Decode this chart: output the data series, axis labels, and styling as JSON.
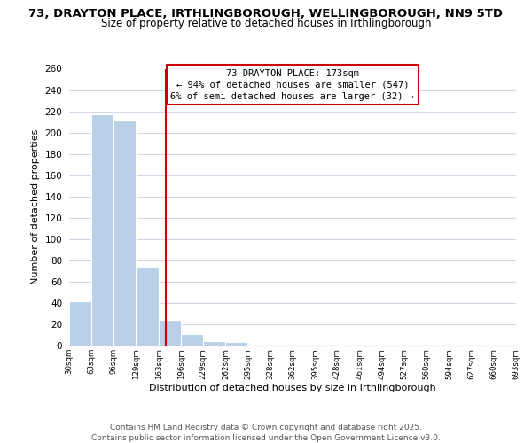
{
  "title_line1": "73, DRAYTON PLACE, IRTHLINGBOROUGH, WELLINGBOROUGH, NN9 5TD",
  "title_line2": "Size of property relative to detached houses in Irthlingborough",
  "xlabel": "Distribution of detached houses by size in Irthlingborough",
  "ylabel": "Number of detached properties",
  "bin_edges": [
    30,
    63,
    96,
    129,
    163,
    196,
    229,
    262,
    295,
    328,
    362,
    395,
    428,
    461,
    494,
    527,
    560,
    594,
    627,
    660,
    693
  ],
  "bin_labels": [
    "30sqm",
    "63sqm",
    "96sqm",
    "129sqm",
    "163sqm",
    "196sqm",
    "229sqm",
    "262sqm",
    "295sqm",
    "328sqm",
    "362sqm",
    "395sqm",
    "428sqm",
    "461sqm",
    "494sqm",
    "527sqm",
    "560sqm",
    "594sqm",
    "627sqm",
    "660sqm",
    "693sqm"
  ],
  "counts": [
    42,
    217,
    211,
    74,
    24,
    11,
    4,
    3,
    0,
    0,
    0,
    0,
    0,
    0,
    0,
    0,
    0,
    0,
    0,
    1
  ],
  "bar_color": "#b8d0e8",
  "vline_color": "#cc0000",
  "box_edge_color": "#cc0000",
  "grid_color": "#d0d8e8",
  "background_color": "#ffffff",
  "red_line_x": 173,
  "ylim": [
    0,
    260
  ],
  "yticks": [
    0,
    20,
    40,
    60,
    80,
    100,
    120,
    140,
    160,
    180,
    200,
    220,
    240,
    260
  ],
  "annotation_line1": "73 DRAYTON PLACE: 173sqm",
  "annotation_line2": "← 94% of detached houses are smaller (547)",
  "annotation_line3": "6% of semi-detached houses are larger (32) →",
  "title_fontsize": 9.5,
  "subtitle_fontsize": 8.5,
  "annotation_fontsize": 7.5,
  "footer_fontsize": 6.5,
  "axis_label_fontsize": 8.0,
  "ylabel_fontsize": 8.0,
  "footer_line1": "Contains HM Land Registry data © Crown copyright and database right 2025.",
  "footer_line2": "Contains public sector information licensed under the Open Government Licence v3.0."
}
